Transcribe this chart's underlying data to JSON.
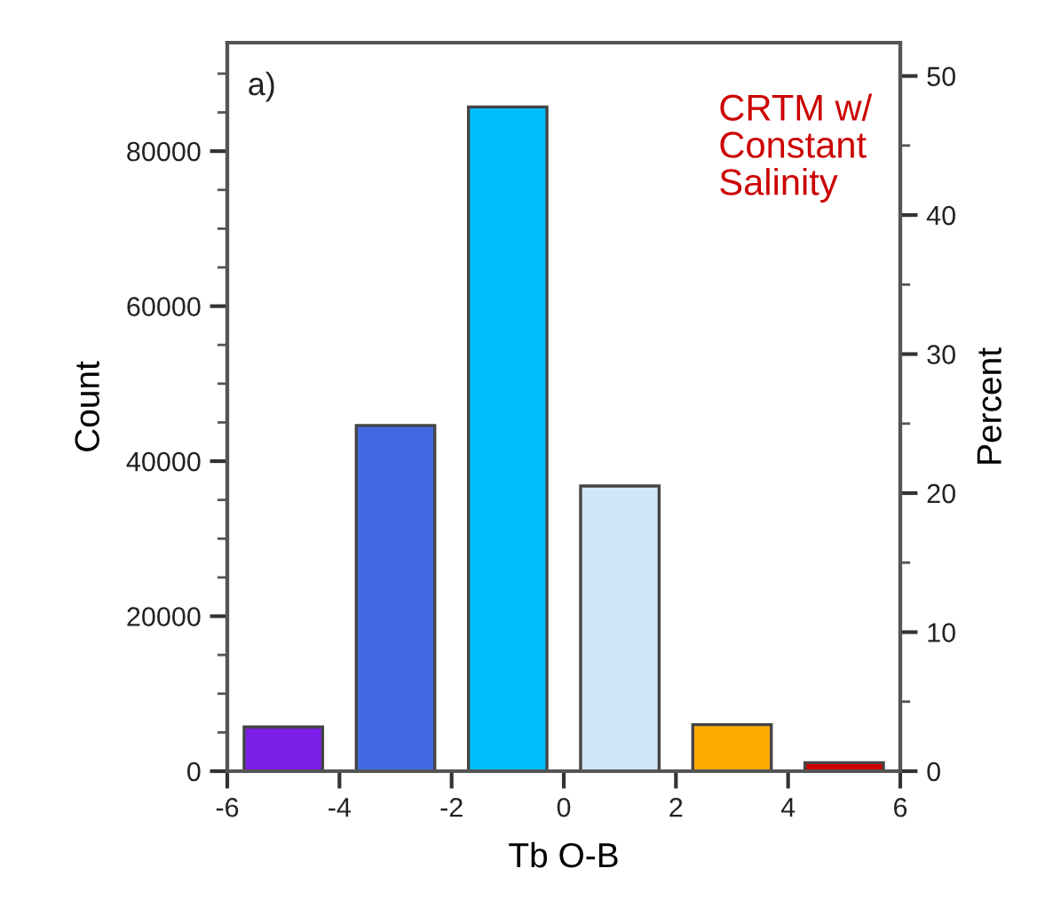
{
  "chart_data": {
    "type": "bar",
    "xlabel": "Tb O-B",
    "ylabel": "Count",
    "y2label": "Percent",
    "x": [
      -5,
      -3,
      -1,
      1,
      3,
      5
    ],
    "values": [
      5700,
      44600,
      85700,
      36800,
      6000,
      1100
    ],
    "colors": [
      "#7b1fe8",
      "#4169e1",
      "#00bfff",
      "#cfe8f7",
      "#ffaa00",
      "#cc0000"
    ],
    "xlim": [
      -6,
      6
    ],
    "xticks": [
      -6,
      -4,
      -2,
      0,
      2,
      4,
      6
    ],
    "ylim": [
      0,
      94000
    ],
    "yticks": [
      0,
      {
        "value": 5000,
        "label": null
      },
      {
        "value": 10000,
        "label": null
      },
      {
        "value": 15000,
        "label": null
      },
      20000,
      {
        "value": 25000,
        "label": null
      },
      {
        "value": 30000,
        "label": null
      },
      {
        "value": 35000,
        "label": null
      },
      40000,
      {
        "value": 45000,
        "label": null
      },
      {
        "value": 50000,
        "label": null
      },
      {
        "value": 55000,
        "label": null
      },
      60000,
      {
        "value": 65000,
        "label": null
      },
      {
        "value": 70000,
        "label": null
      },
      {
        "value": 75000,
        "label": null
      },
      80000,
      {
        "value": 85000,
        "label": null
      },
      {
        "value": 90000,
        "label": null
      }
    ],
    "y2lim": [
      0,
      52.4
    ],
    "y2ticks": [
      0,
      {
        "value": 5,
        "label": null
      },
      10,
      {
        "value": 15,
        "label": null
      },
      20,
      {
        "value": 25,
        "label": null
      },
      30,
      {
        "value": 35,
        "label": null
      },
      40,
      {
        "value": 45,
        "label": null
      },
      50
    ],
    "annotations": [
      "a)",
      "CRTM w/\nConstant\nSalinity"
    ],
    "grid": false,
    "legend": false
  }
}
